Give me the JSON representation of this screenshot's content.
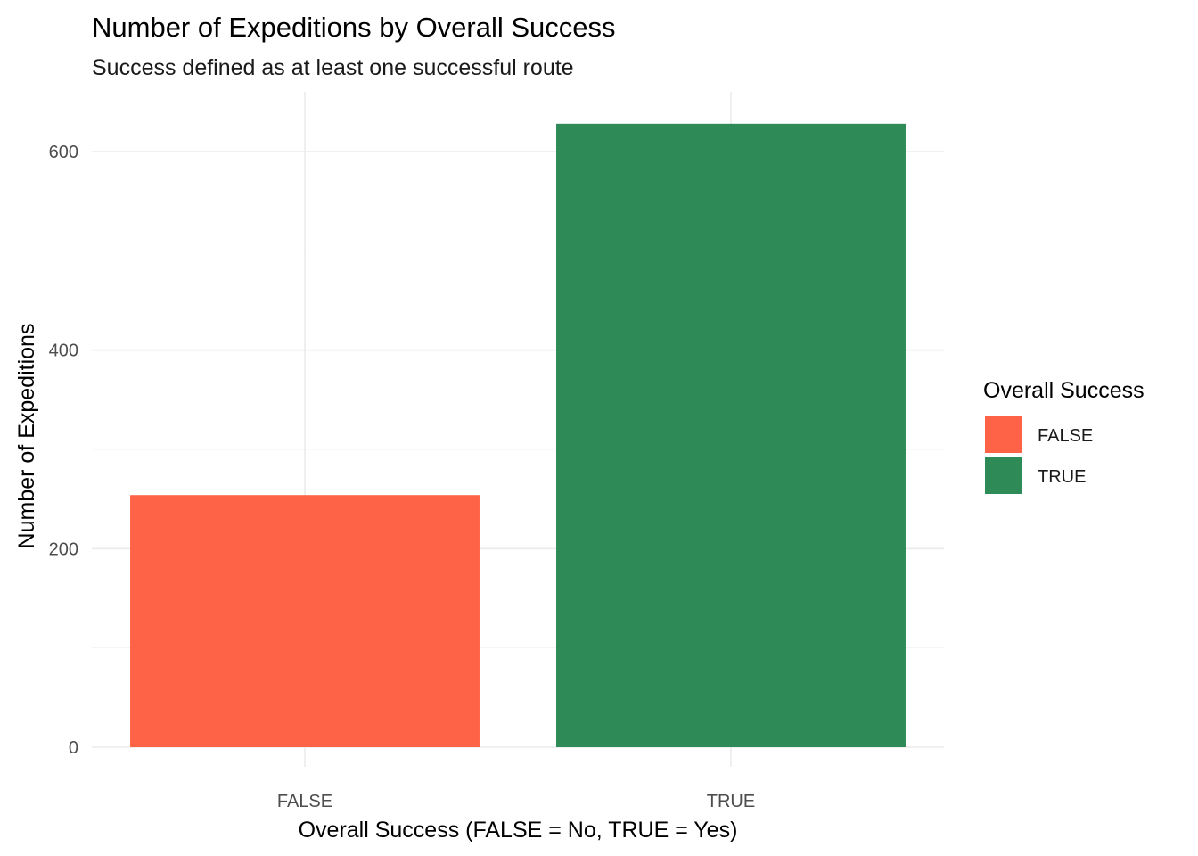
{
  "chart_data": {
    "type": "bar",
    "title": "Number of Expeditions by Overall Success",
    "subtitle": "Success defined as at least one successful route",
    "xlabel": "Overall Success (FALSE = No, TRUE = Yes)",
    "ylabel": "Number of Expeditions",
    "categories": [
      "FALSE",
      "TRUE"
    ],
    "values": [
      254,
      628
    ],
    "colors": [
      "#FF6347",
      "#2E8B57"
    ],
    "ylim": [
      0,
      650
    ],
    "yticks": [
      0,
      200,
      400,
      600
    ],
    "grid": true,
    "legend": {
      "title": "Overall Success",
      "position": "right",
      "items": [
        {
          "label": "FALSE",
          "color": "#FF6347"
        },
        {
          "label": "TRUE",
          "color": "#2E8B57"
        }
      ]
    }
  }
}
